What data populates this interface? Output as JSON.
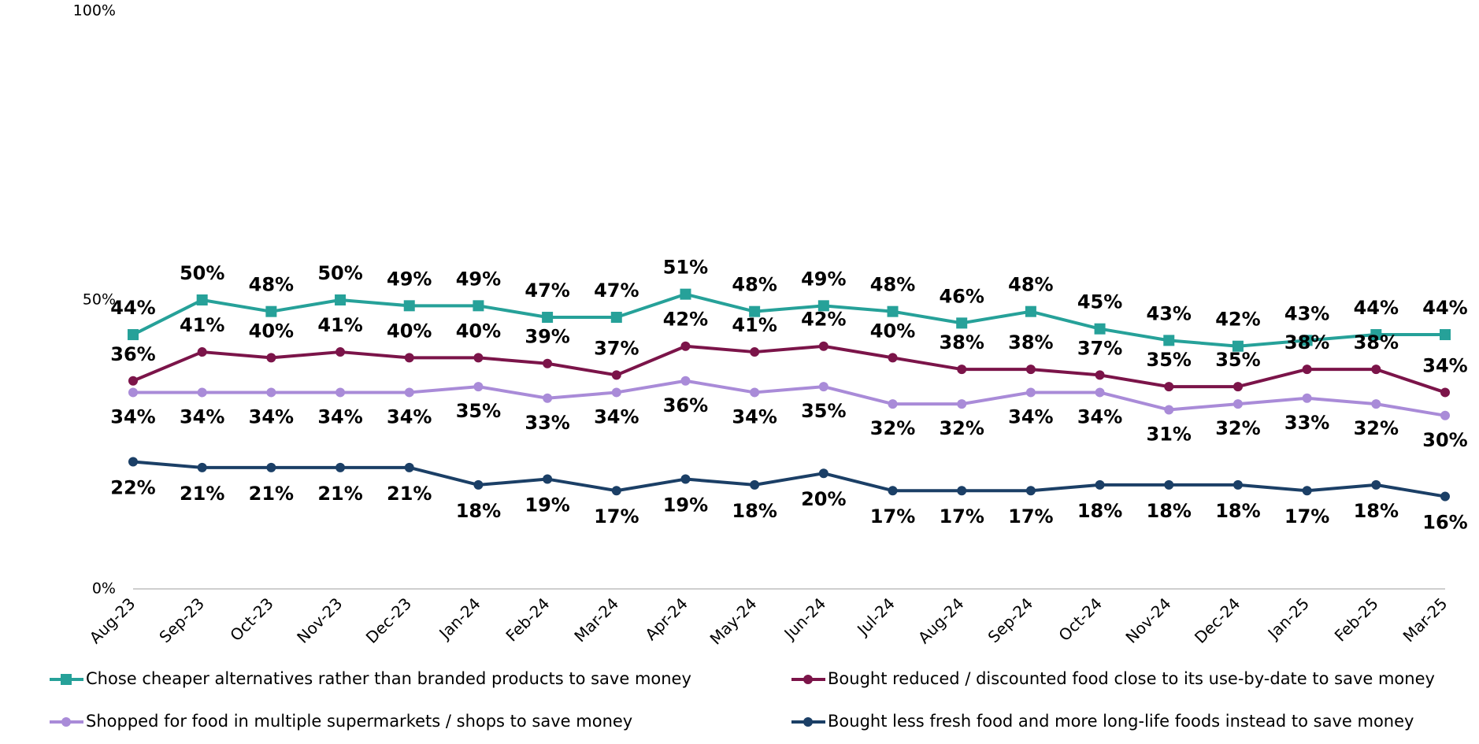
{
  "chart_data": {
    "type": "line",
    "categories": [
      "Aug-23",
      "Sep-23",
      "Oct-23",
      "Nov-23",
      "Dec-23",
      "Jan-24",
      "Feb-24",
      "Mar-24",
      "Apr-24",
      "May-24",
      "Jun-24",
      "Jul-24",
      "Aug-24",
      "Sep-24",
      "Oct-24",
      "Nov-24",
      "Dec-24",
      "Jan-25",
      "Feb-25",
      "Mar-25"
    ],
    "ylim": [
      0,
      100
    ],
    "yticks": [
      {
        "value": 0,
        "label": "0%"
      },
      {
        "value": 50,
        "label": "50%"
      },
      {
        "value": 100,
        "label": "100%"
      }
    ],
    "series": [
      {
        "name": "Chose cheaper alternatives rather than branded products to save money",
        "color": "#26a199",
        "marker": "square",
        "values": [
          44,
          50,
          48,
          50,
          49,
          49,
          47,
          47,
          51,
          48,
          49,
          48,
          46,
          48,
          45,
          43,
          42,
          43,
          44,
          44
        ],
        "value_labels": [
          "44%",
          "50%",
          "48%",
          "50%",
          "49%",
          "49%",
          "47%",
          "47%",
          "51%",
          "48%",
          "49%",
          "48%",
          "46%",
          "48%",
          "45%",
          "43%",
          "42%",
          "43%",
          "44%",
          "44%"
        ]
      },
      {
        "name": "Bought reduced / discounted food close to its use-by-date to save money",
        "color": "#7b1449",
        "marker": "circle",
        "values": [
          36,
          41,
          40,
          41,
          40,
          40,
          39,
          37,
          42,
          41,
          42,
          40,
          38,
          38,
          37,
          35,
          35,
          38,
          38,
          34
        ],
        "value_labels": [
          "36%",
          "41%",
          "40%",
          "41%",
          "40%",
          "40%",
          "39%",
          "37%",
          "42%",
          "41%",
          "42%",
          "40%",
          "38%",
          "38%",
          "37%",
          "35%",
          "35%",
          "38%",
          "38%",
          "34%"
        ]
      },
      {
        "name": "Shopped for food in multiple supermarkets / shops to save money",
        "color": "#a98bd8",
        "marker": "circle",
        "values": [
          34,
          34,
          34,
          34,
          34,
          35,
          33,
          34,
          36,
          34,
          35,
          32,
          32,
          34,
          34,
          31,
          32,
          33,
          32,
          30
        ],
        "value_labels": [
          "34%",
          "34%",
          "34%",
          "34%",
          "34%",
          "35%",
          "33%",
          "34%",
          "36%",
          "34%",
          "35%",
          "32%",
          "32%",
          "34%",
          "34%",
          "31%",
          "32%",
          "33%",
          "32%",
          "30%"
        ]
      },
      {
        "name": "Bought less fresh food and more long-life foods instead to save money",
        "color": "#1b3f66",
        "marker": "circle",
        "values": [
          22,
          21,
          21,
          21,
          21,
          18,
          19,
          17,
          19,
          18,
          20,
          17,
          17,
          17,
          18,
          18,
          18,
          17,
          18,
          16
        ],
        "value_labels": [
          "22%",
          "21%",
          "21%",
          "21%",
          "21%",
          "18%",
          "19%",
          "17%",
          "19%",
          "18%",
          "20%",
          "17%",
          "17%",
          "17%",
          "18%",
          "18%",
          "18%",
          "17%",
          "18%",
          "16%"
        ]
      }
    ]
  }
}
